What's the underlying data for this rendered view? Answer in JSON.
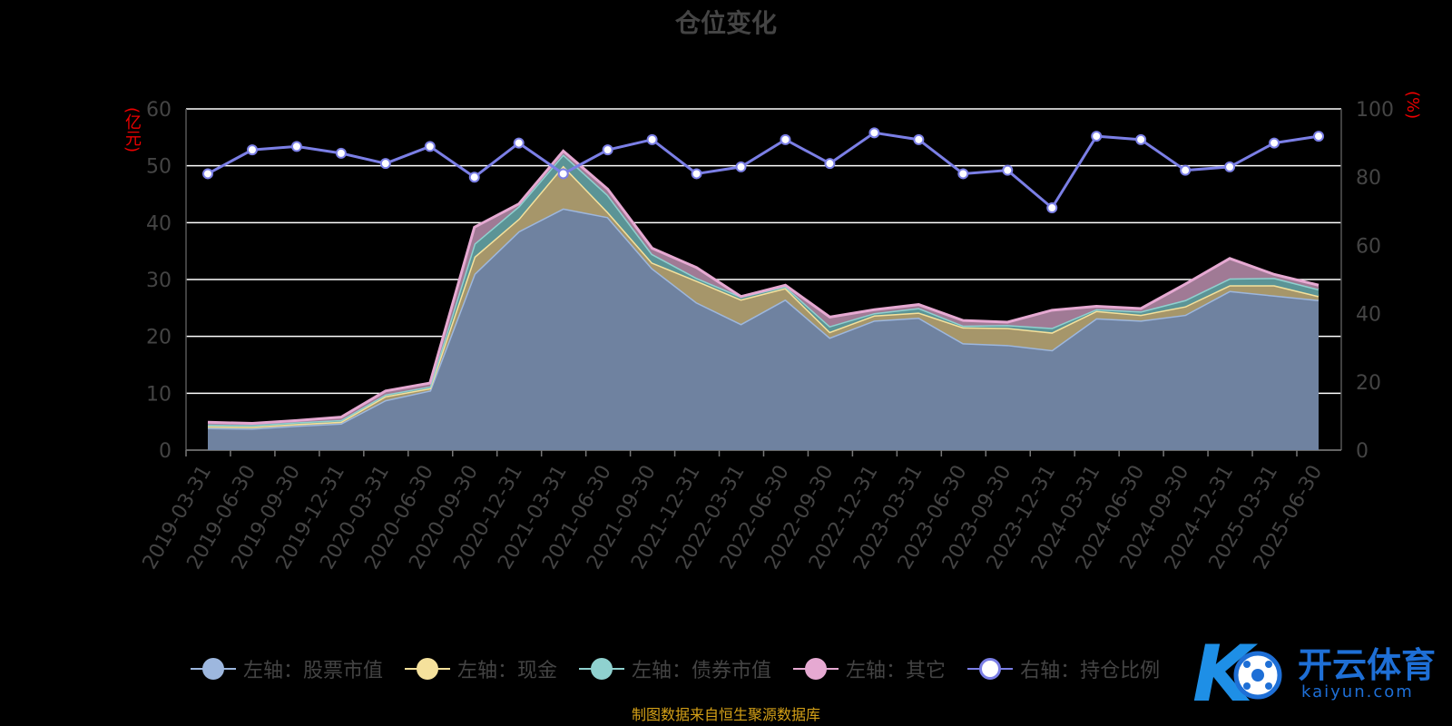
{
  "title": "仓位变化",
  "source_note": "制图数据来自恒生聚源数据库",
  "watermark": {
    "brand": "开云体育",
    "site": "kaiyun.com"
  },
  "colors": {
    "stock": "#9db7de",
    "cash": "#f5e19c",
    "bond": "#8fd1cf",
    "other": "#e6a9d2",
    "ratio": "#7b7fe6",
    "grid": "#ffffff",
    "axis_text": "#444444",
    "unit_text": "#ee0000"
  },
  "chart_data": {
    "type": "area",
    "stacked": true,
    "categories": [
      "2019-03-31",
      "2019-06-30",
      "2019-09-30",
      "2019-12-31",
      "2020-03-31",
      "2020-06-30",
      "2020-09-30",
      "2020-12-31",
      "2021-03-31",
      "2021-06-30",
      "2021-09-30",
      "2021-12-31",
      "2022-03-31",
      "2022-06-30",
      "2022-09-30",
      "2022-12-31",
      "2023-03-31",
      "2023-06-30",
      "2023-09-30",
      "2023-12-31",
      "2024-03-31",
      "2024-06-30",
      "2024-09-30",
      "2024-12-31",
      "2025-03-31",
      "2025-06-30"
    ],
    "left_axis": {
      "unit": "(亿元)",
      "min": 0,
      "max": 60,
      "ticks": [
        "0",
        "10",
        "20",
        "30",
        "40",
        "50",
        "60"
      ]
    },
    "right_axis": {
      "unit": "(%)",
      "min": 0,
      "max": 100,
      "ticks": [
        "0",
        "20",
        "40",
        "60",
        "80",
        "100"
      ]
    },
    "series": [
      {
        "name": "左轴：股票市值",
        "key": "stock",
        "axis": "left",
        "values": [
          3.9,
          3.8,
          4.3,
          4.7,
          8.8,
          10.5,
          31,
          38.5,
          42.5,
          41,
          32,
          26,
          22.2,
          26.5,
          19.8,
          22.8,
          23.3,
          18.8,
          18.5,
          17.6,
          23.2,
          22.8,
          23.8,
          28,
          27.2,
          26.4
        ]
      },
      {
        "name": "左轴：现金",
        "key": "cash",
        "axis": "left",
        "values": [
          0.3,
          0.3,
          0.3,
          0.3,
          0.7,
          0.4,
          3,
          2.2,
          7.5,
          0.9,
          1,
          3.8,
          4.3,
          2,
          1,
          0.9,
          0.9,
          2.8,
          3,
          3.1,
          1.3,
          1,
          1.5,
          1,
          1.8,
          0.7
        ]
      },
      {
        "name": "左轴：债券市值",
        "key": "bond",
        "axis": "left",
        "values": [
          0.3,
          0.3,
          0.3,
          0.3,
          0.3,
          0.3,
          2.3,
          2.2,
          2,
          3,
          1.5,
          0.5,
          0.5,
          0.3,
          1,
          0.4,
          0.8,
          0.3,
          0.5,
          0.8,
          0.3,
          0.6,
          1.1,
          1.2,
          1.3,
          1.2
        ]
      },
      {
        "name": "左轴：其它",
        "key": "other",
        "axis": "left",
        "values": [
          0.4,
          0.3,
          0.3,
          0.5,
          0.6,
          0.6,
          2.9,
          0.4,
          0.6,
          1,
          1,
          1.8,
          0,
          0.2,
          1.6,
          0.6,
          0.6,
          0.9,
          0.5,
          3.1,
          0.5,
          0.5,
          2.8,
          3.5,
          0.6,
          0.7
        ]
      },
      {
        "name": "右轴：持仓比例",
        "key": "ratio",
        "axis": "right",
        "type": "line",
        "values": [
          81,
          88,
          89,
          87,
          84,
          89,
          80,
          90,
          81,
          88,
          91,
          81,
          83,
          91,
          84,
          93,
          91,
          81,
          82,
          71,
          92,
          91,
          82,
          83,
          90,
          92
        ]
      }
    ],
    "grid": true,
    "legend_position": "bottom"
  }
}
